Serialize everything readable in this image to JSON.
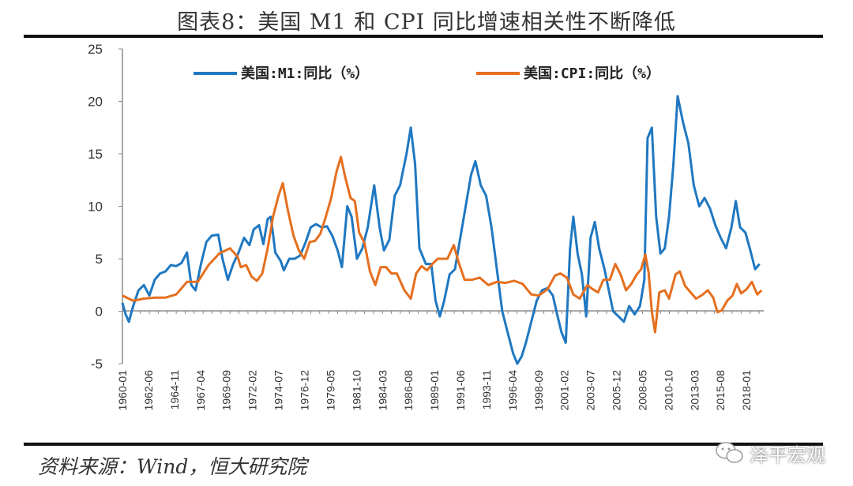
{
  "header": {
    "title": "图表8：美国 M1 和 CPI 同比增速相关性不断降低"
  },
  "footer": {
    "source": "资料来源：Wind，恒大研究院",
    "watermark": "泽平宏观"
  },
  "colors": {
    "m1": "#1f78c1",
    "cpi": "#e56f1f",
    "axis": "#8c8c8c"
  },
  "chart_data": {
    "type": "line",
    "title": "图表8：美国 M1 和 CPI 同比增速相关性不断降低",
    "xlabel": "",
    "ylabel": "",
    "ylim": [
      -5,
      25
    ],
    "yticks": [
      "-5",
      "0",
      "5",
      "10",
      "15",
      "20",
      "25"
    ],
    "xlim": [
      1960.0,
      2019.6
    ],
    "xticks": [
      {
        "label": "1960-01",
        "t": 1960.0
      },
      {
        "label": "1962-06",
        "t": 1962.42
      },
      {
        "label": "1964-11",
        "t": 1964.83
      },
      {
        "label": "1967-04",
        "t": 1967.25
      },
      {
        "label": "1969-09",
        "t": 1969.67
      },
      {
        "label": "1972-02",
        "t": 1972.08
      },
      {
        "label": "1974-07",
        "t": 1974.5
      },
      {
        "label": "1976-12",
        "t": 1976.92
      },
      {
        "label": "1979-05",
        "t": 1979.33
      },
      {
        "label": "1981-10",
        "t": 1981.75
      },
      {
        "label": "1984-03",
        "t": 1984.17
      },
      {
        "label": "1986-08",
        "t": 1986.58
      },
      {
        "label": "1989-01",
        "t": 1989.0
      },
      {
        "label": "1991-06",
        "t": 1991.42
      },
      {
        "label": "1993-11",
        "t": 1993.83
      },
      {
        "label": "1996-04",
        "t": 1996.25
      },
      {
        "label": "1998-09",
        "t": 1998.67
      },
      {
        "label": "2001-02",
        "t": 2001.08
      },
      {
        "label": "2003-07",
        "t": 2003.5
      },
      {
        "label": "2005-12",
        "t": 2005.92
      },
      {
        "label": "2008-05",
        "t": 2008.33
      },
      {
        "label": "2010-10",
        "t": 2010.75
      },
      {
        "label": "2013-03",
        "t": 2013.17
      },
      {
        "label": "2015-08",
        "t": 2015.58
      },
      {
        "label": "2018-01",
        "t": 2018.0
      }
    ],
    "legend": "top",
    "series": [
      {
        "name": "美国:M1:同比（%）",
        "color": "#1f78c1",
        "points": [
          [
            1960.0,
            0.8
          ],
          [
            1960.3,
            -0.3
          ],
          [
            1960.6,
            -1.0
          ],
          [
            1961.0,
            0.5
          ],
          [
            1961.5,
            2.0
          ],
          [
            1962.0,
            2.5
          ],
          [
            1962.5,
            1.5
          ],
          [
            1963.0,
            3.0
          ],
          [
            1963.5,
            3.6
          ],
          [
            1964.0,
            3.8
          ],
          [
            1964.5,
            4.4
          ],
          [
            1965.0,
            4.3
          ],
          [
            1965.5,
            4.6
          ],
          [
            1966.0,
            5.6
          ],
          [
            1966.4,
            2.5
          ],
          [
            1966.8,
            2.0
          ],
          [
            1967.3,
            4.5
          ],
          [
            1967.8,
            6.6
          ],
          [
            1968.3,
            7.2
          ],
          [
            1968.9,
            7.3
          ],
          [
            1969.3,
            5.0
          ],
          [
            1969.8,
            3.0
          ],
          [
            1970.3,
            4.5
          ],
          [
            1970.8,
            5.6
          ],
          [
            1971.3,
            7.0
          ],
          [
            1971.8,
            6.3
          ],
          [
            1972.2,
            7.8
          ],
          [
            1972.7,
            8.2
          ],
          [
            1973.1,
            6.4
          ],
          [
            1973.5,
            8.8
          ],
          [
            1973.8,
            9.0
          ],
          [
            1974.2,
            5.6
          ],
          [
            1974.7,
            4.8
          ],
          [
            1975.0,
            3.9
          ],
          [
            1975.5,
            5.0
          ],
          [
            1976.0,
            5.0
          ],
          [
            1976.5,
            5.3
          ],
          [
            1977.0,
            6.5
          ],
          [
            1977.5,
            8.0
          ],
          [
            1978.0,
            8.3
          ],
          [
            1978.5,
            8.0
          ],
          [
            1979.0,
            8.1
          ],
          [
            1979.5,
            7.2
          ],
          [
            1980.0,
            5.8
          ],
          [
            1980.4,
            4.2
          ],
          [
            1980.9,
            10.0
          ],
          [
            1981.3,
            9.0
          ],
          [
            1981.8,
            5.0
          ],
          [
            1982.3,
            6.0
          ],
          [
            1982.8,
            8.0
          ],
          [
            1983.4,
            12.0
          ],
          [
            1983.9,
            8.0
          ],
          [
            1984.3,
            5.8
          ],
          [
            1984.8,
            6.8
          ],
          [
            1985.3,
            11.0
          ],
          [
            1985.8,
            12.0
          ],
          [
            1986.4,
            15.0
          ],
          [
            1986.8,
            17.5
          ],
          [
            1987.2,
            14.0
          ],
          [
            1987.6,
            6.0
          ],
          [
            1988.2,
            4.5
          ],
          [
            1988.7,
            4.5
          ],
          [
            1989.1,
            1.0
          ],
          [
            1989.5,
            -0.5
          ],
          [
            1989.9,
            1.0
          ],
          [
            1990.4,
            3.5
          ],
          [
            1990.9,
            4.0
          ],
          [
            1991.4,
            7.0
          ],
          [
            1991.9,
            10.0
          ],
          [
            1992.4,
            13.0
          ],
          [
            1992.8,
            14.3
          ],
          [
            1993.3,
            12.0
          ],
          [
            1993.8,
            11.0
          ],
          [
            1994.3,
            8.0
          ],
          [
            1994.8,
            4.0
          ],
          [
            1995.3,
            0.0
          ],
          [
            1995.8,
            -2.0
          ],
          [
            1996.3,
            -4.0
          ],
          [
            1996.7,
            -5.0
          ],
          [
            1997.1,
            -4.3
          ],
          [
            1997.5,
            -3.0
          ],
          [
            1998.0,
            -1.0
          ],
          [
            1998.5,
            1.0
          ],
          [
            1999.0,
            2.0
          ],
          [
            1999.5,
            2.2
          ],
          [
            2000.0,
            1.5
          ],
          [
            2000.4,
            -0.3
          ],
          [
            2000.8,
            -2.0
          ],
          [
            2001.2,
            -3.0
          ],
          [
            2001.6,
            6.0
          ],
          [
            2001.9,
            9.0
          ],
          [
            2002.3,
            5.5
          ],
          [
            2002.7,
            3.5
          ],
          [
            2003.1,
            -0.5
          ],
          [
            2003.5,
            7.0
          ],
          [
            2003.9,
            8.5
          ],
          [
            2004.3,
            6.0
          ],
          [
            2004.8,
            4.0
          ],
          [
            2005.2,
            2.0
          ],
          [
            2005.6,
            0.0
          ],
          [
            2006.1,
            -0.5
          ],
          [
            2006.6,
            -1.0
          ],
          [
            2007.1,
            0.5
          ],
          [
            2007.6,
            -0.3
          ],
          [
            2008.1,
            0.5
          ],
          [
            2008.5,
            3.0
          ],
          [
            2008.8,
            16.5
          ],
          [
            2009.2,
            17.5
          ],
          [
            2009.6,
            9.0
          ],
          [
            2010.0,
            5.5
          ],
          [
            2010.4,
            6.0
          ],
          [
            2010.8,
            9.0
          ],
          [
            2011.2,
            14.0
          ],
          [
            2011.6,
            20.5
          ],
          [
            2012.1,
            18.0
          ],
          [
            2012.6,
            16.0
          ],
          [
            2013.1,
            12.0
          ],
          [
            2013.6,
            10.0
          ],
          [
            2014.1,
            10.8
          ],
          [
            2014.6,
            9.8
          ],
          [
            2015.1,
            8.2
          ],
          [
            2015.6,
            7.0
          ],
          [
            2016.1,
            6.0
          ],
          [
            2016.6,
            8.0
          ],
          [
            2017.0,
            10.5
          ],
          [
            2017.4,
            8.0
          ],
          [
            2017.9,
            7.5
          ],
          [
            2018.3,
            6.0
          ],
          [
            2018.8,
            4.0
          ],
          [
            2019.2,
            4.5
          ]
        ]
      },
      {
        "name": "美国:CPI:同比（%）",
        "color": "#e56f1f",
        "points": [
          [
            1960.0,
            1.5
          ],
          [
            1961.0,
            1.0
          ],
          [
            1962.0,
            1.2
          ],
          [
            1963.0,
            1.3
          ],
          [
            1964.0,
            1.3
          ],
          [
            1965.0,
            1.6
          ],
          [
            1966.0,
            2.8
          ],
          [
            1967.0,
            2.8
          ],
          [
            1968.0,
            4.4
          ],
          [
            1969.0,
            5.5
          ],
          [
            1970.0,
            6.0
          ],
          [
            1970.7,
            5.2
          ],
          [
            1971.0,
            4.2
          ],
          [
            1971.5,
            4.4
          ],
          [
            1972.0,
            3.3
          ],
          [
            1972.5,
            2.9
          ],
          [
            1973.0,
            3.6
          ],
          [
            1973.5,
            6.0
          ],
          [
            1974.0,
            9.0
          ],
          [
            1974.5,
            11.0
          ],
          [
            1974.9,
            12.2
          ],
          [
            1975.4,
            9.5
          ],
          [
            1975.9,
            7.2
          ],
          [
            1976.4,
            5.8
          ],
          [
            1976.9,
            5.0
          ],
          [
            1977.4,
            6.6
          ],
          [
            1977.9,
            6.7
          ],
          [
            1978.4,
            7.4
          ],
          [
            1978.9,
            9.0
          ],
          [
            1979.4,
            10.8
          ],
          [
            1979.9,
            13.3
          ],
          [
            1980.3,
            14.7
          ],
          [
            1980.7,
            12.8
          ],
          [
            1981.2,
            10.8
          ],
          [
            1981.6,
            10.5
          ],
          [
            1982.0,
            7.5
          ],
          [
            1982.5,
            6.5
          ],
          [
            1983.0,
            3.8
          ],
          [
            1983.5,
            2.5
          ],
          [
            1984.0,
            4.2
          ],
          [
            1984.5,
            4.2
          ],
          [
            1985.0,
            3.6
          ],
          [
            1985.5,
            3.6
          ],
          [
            1986.2,
            2.0
          ],
          [
            1986.8,
            1.2
          ],
          [
            1987.3,
            3.6
          ],
          [
            1987.8,
            4.3
          ],
          [
            1988.3,
            3.9
          ],
          [
            1988.8,
            4.5
          ],
          [
            1989.3,
            5.0
          ],
          [
            1990.2,
            5.0
          ],
          [
            1990.8,
            6.3
          ],
          [
            1991.2,
            4.8
          ],
          [
            1991.8,
            3.0
          ],
          [
            1992.5,
            3.0
          ],
          [
            1993.2,
            3.2
          ],
          [
            1994.0,
            2.5
          ],
          [
            1994.8,
            2.8
          ],
          [
            1995.6,
            2.7
          ],
          [
            1996.4,
            2.9
          ],
          [
            1997.2,
            2.6
          ],
          [
            1998.0,
            1.6
          ],
          [
            1998.7,
            1.5
          ],
          [
            1999.5,
            2.1
          ],
          [
            2000.2,
            3.4
          ],
          [
            2000.7,
            3.6
          ],
          [
            2001.3,
            3.2
          ],
          [
            2001.9,
            1.6
          ],
          [
            2002.5,
            1.2
          ],
          [
            2003.2,
            2.5
          ],
          [
            2003.7,
            2.1
          ],
          [
            2004.2,
            1.8
          ],
          [
            2004.7,
            3.0
          ],
          [
            2005.3,
            3.0
          ],
          [
            2005.8,
            4.5
          ],
          [
            2006.3,
            3.5
          ],
          [
            2006.8,
            2.0
          ],
          [
            2007.3,
            2.6
          ],
          [
            2007.8,
            3.5
          ],
          [
            2008.2,
            4.0
          ],
          [
            2008.6,
            5.4
          ],
          [
            2008.9,
            3.7
          ],
          [
            2009.2,
            0.0
          ],
          [
            2009.5,
            -2.0
          ],
          [
            2009.9,
            1.8
          ],
          [
            2010.4,
            2.0
          ],
          [
            2010.8,
            1.2
          ],
          [
            2011.4,
            3.5
          ],
          [
            2011.8,
            3.8
          ],
          [
            2012.3,
            2.4
          ],
          [
            2012.8,
            1.8
          ],
          [
            2013.3,
            1.2
          ],
          [
            2013.8,
            1.5
          ],
          [
            2014.4,
            2.0
          ],
          [
            2014.9,
            1.3
          ],
          [
            2015.3,
            -0.1
          ],
          [
            2015.7,
            0.1
          ],
          [
            2016.2,
            1.0
          ],
          [
            2016.7,
            1.5
          ],
          [
            2017.1,
            2.6
          ],
          [
            2017.5,
            1.7
          ],
          [
            2018.0,
            2.1
          ],
          [
            2018.5,
            2.8
          ],
          [
            2019.0,
            1.6
          ],
          [
            2019.4,
            2.0
          ]
        ]
      }
    ]
  }
}
